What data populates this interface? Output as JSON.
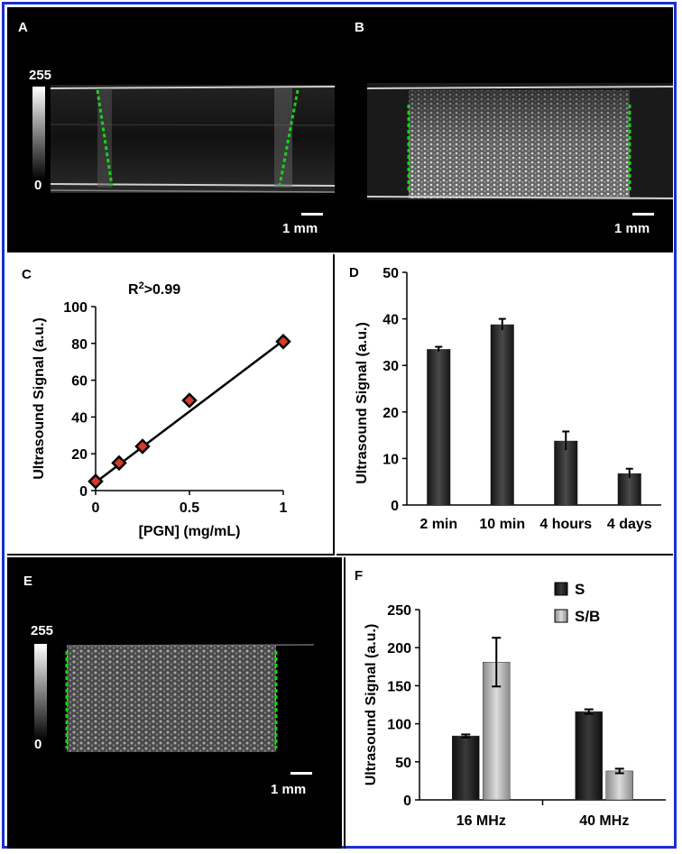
{
  "panels": {
    "a": {
      "letter": "A",
      "scale_max": "255",
      "scale_min": "0",
      "scale_bar": "1 mm"
    },
    "b": {
      "letter": "B",
      "scale_bar": "1 mm"
    },
    "c": {
      "letter": "C"
    },
    "d": {
      "letter": "D"
    },
    "e": {
      "letter": "E",
      "scale_max": "255",
      "scale_min": "0",
      "scale_bar": "1 mm"
    },
    "f": {
      "letter": "F"
    }
  },
  "colors": {
    "guide_line": "#19d219",
    "frame": "#1a2fd0",
    "dark_bar": "#2b2b2b",
    "light_bar": "#b9b9b9",
    "marker_fill": "#d33b2c"
  },
  "chart_data": [
    {
      "id": "C",
      "type": "scatter",
      "annotation": "R2>0.99",
      "xlabel": "[PGN] (mg/mL)",
      "ylabel": "Ultrasound Signal (a.u.)",
      "xlim": [
        0,
        1
      ],
      "ylim": [
        0,
        100
      ],
      "xticks": [
        0,
        0.5,
        1
      ],
      "yticks": [
        0,
        20,
        40,
        60,
        80,
        100
      ],
      "x": [
        0,
        0.125,
        0.25,
        0.5,
        1
      ],
      "y": [
        5,
        15,
        24,
        49,
        81
      ],
      "fit_line": {
        "x": [
          0,
          1
        ],
        "y": [
          4.5,
          81.5
        ]
      }
    },
    {
      "id": "D",
      "type": "bar",
      "ylabel": "Ultrasound Signal (a.u.)",
      "categories": [
        "2 min",
        "10 min",
        "4 hours",
        "4 days"
      ],
      "values": [
        33.5,
        38.8,
        13.8,
        6.8
      ],
      "errors": [
        0.5,
        1.2,
        2.0,
        1.0
      ],
      "ylim": [
        0,
        50
      ],
      "yticks": [
        0,
        10,
        20,
        30,
        40,
        50
      ]
    },
    {
      "id": "F",
      "type": "bar",
      "ylabel": "Ultrasound Signal (a.u.)",
      "categories": [
        "16 MHz",
        "40 MHz"
      ],
      "series": [
        {
          "name": "S",
          "values": [
            84,
            116
          ],
          "errors": [
            2,
            3
          ]
        },
        {
          "name": "S/B",
          "values": [
            181,
            38
          ],
          "errors": [
            32,
            3
          ]
        }
      ],
      "ylim": [
        0,
        250
      ],
      "yticks": [
        0,
        50,
        100,
        150,
        200,
        250
      ],
      "legend": "top-right"
    }
  ]
}
